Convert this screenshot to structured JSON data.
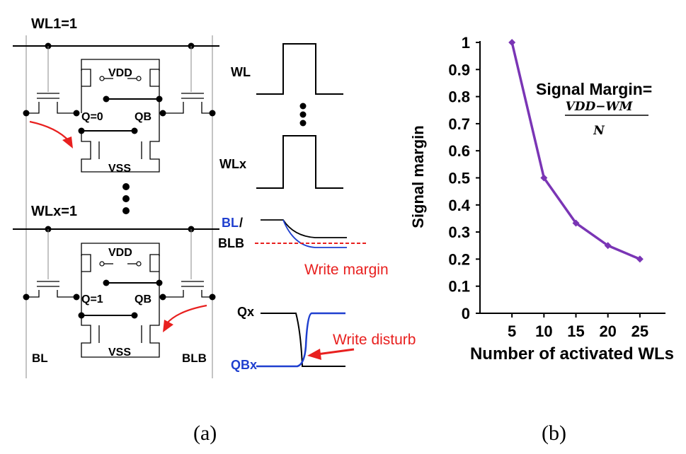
{
  "panel_a": {
    "caption": "(a)",
    "cell1": {
      "wl_label": "WL1=1",
      "vdd": "VDD",
      "vss": "VSS",
      "q": "Q=0",
      "qb": "QB"
    },
    "cell2": {
      "wl_label": "WLx=1",
      "vdd": "VDD",
      "vss": "VSS",
      "q": "Q=1",
      "qb": "QB"
    },
    "bl_label": "BL",
    "blb_label": "BLB",
    "waveforms": {
      "wl": "WL",
      "wlx": "WLx",
      "bl_part": "BL",
      "bl_slash": "/",
      "blb": "BLB",
      "write_margin": "Write margin",
      "qx": "Qx",
      "qbx": "QBx",
      "write_disturb": "Write disturb"
    },
    "colors": {
      "red": "#e8201f",
      "blue": "#1f3fcf",
      "black": "#000000"
    }
  },
  "panel_b": {
    "caption": "(b)",
    "formula_title": "Signal Margin=",
    "formula_num": "VDD−WM",
    "formula_den": "N",
    "chart_data": {
      "type": "line",
      "xlabel": "Number of activated WLs",
      "ylabel": "Signal margin",
      "x_ticks": [
        "5",
        "10",
        "15",
        "20",
        "25"
      ],
      "y_ticks": [
        "0",
        "0.1",
        "0.2",
        "0.3",
        "0.4",
        "0.5",
        "0.6",
        "0.7",
        "0.8",
        "0.9",
        "1"
      ],
      "ylim": [
        0,
        1
      ],
      "grid": false,
      "series": [
        {
          "x": [
            5,
            10,
            15,
            20,
            25
          ],
          "values": [
            1.0,
            0.5,
            0.333,
            0.25,
            0.2
          ],
          "color": "#7a35b5"
        }
      ]
    }
  }
}
